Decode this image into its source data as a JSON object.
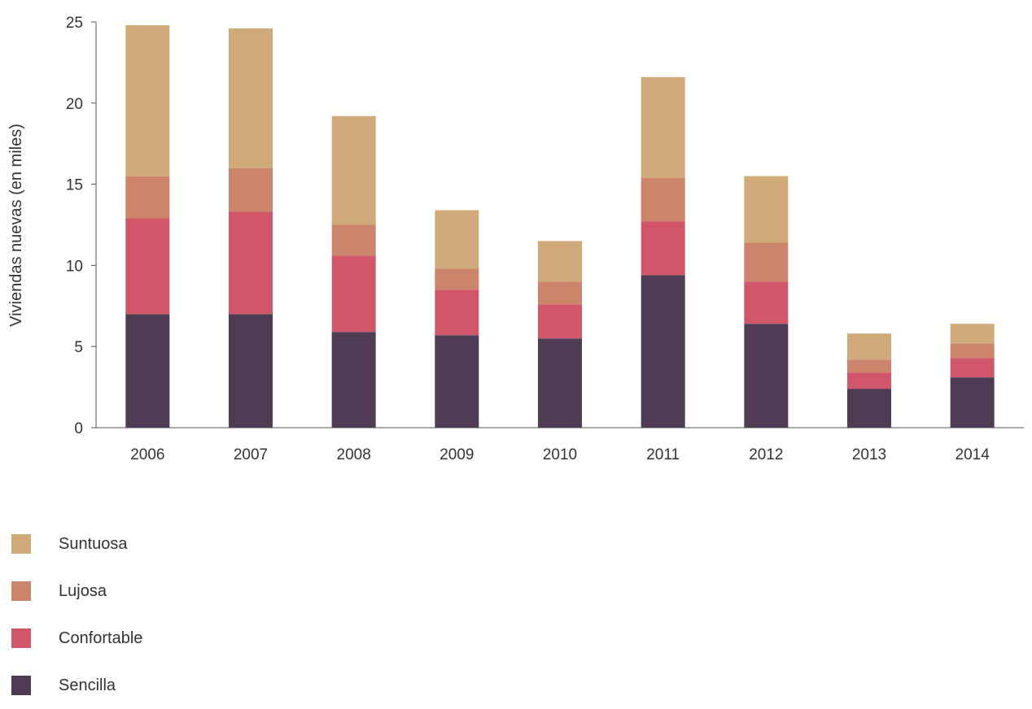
{
  "chart_data": {
    "type": "bar",
    "stacked": true,
    "categories": [
      "2006",
      "2007",
      "2008",
      "2009",
      "2010",
      "2011",
      "2012",
      "2013",
      "2014"
    ],
    "series": [
      {
        "name": "Sencilla",
        "color": "#4f3b54",
        "values": [
          7.0,
          7.0,
          5.9,
          5.7,
          5.5,
          9.4,
          6.4,
          2.4,
          3.1
        ]
      },
      {
        "name": "Confortable",
        "color": "#d2566a",
        "values": [
          5.9,
          6.3,
          4.7,
          2.8,
          2.1,
          3.3,
          2.6,
          1.0,
          1.2
        ]
      },
      {
        "name": "Lujosa",
        "color": "#cc846a",
        "values": [
          2.6,
          2.7,
          1.9,
          1.3,
          1.4,
          2.7,
          2.4,
          0.8,
          0.9
        ]
      },
      {
        "name": "Suntuosa",
        "color": "#d0aa78",
        "values": [
          9.3,
          8.6,
          6.7,
          3.6,
          2.5,
          6.2,
          4.1,
          1.6,
          1.2
        ]
      }
    ],
    "title": "",
    "xlabel": "",
    "ylabel": "Viviendas nuevas (en miles)",
    "ylim": [
      0,
      25
    ],
    "yticks": [
      "0",
      "5",
      "10",
      "15",
      "20",
      "25"
    ],
    "grid": false,
    "legend_position": "bottom-left",
    "legend_order": [
      "Suntuosa",
      "Lujosa",
      "Confortable",
      "Sencilla"
    ]
  }
}
